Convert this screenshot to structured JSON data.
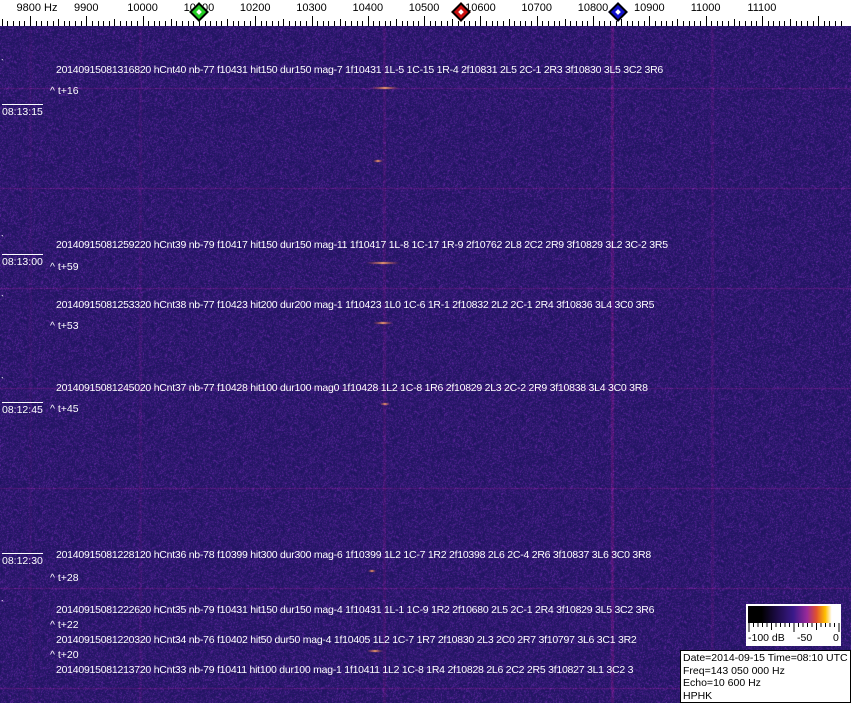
{
  "frequency_axis": {
    "labels": [
      {
        "text": "9800 Hz",
        "freq": 9800
      },
      {
        "text": "9900",
        "freq": 9900
      },
      {
        "text": "10000",
        "freq": 10000
      },
      {
        "text": "10100",
        "freq": 10100
      },
      {
        "text": "10200",
        "freq": 10200
      },
      {
        "text": "10300",
        "freq": 10300
      },
      {
        "text": "10400",
        "freq": 10400
      },
      {
        "text": "10500",
        "freq": 10500
      },
      {
        "text": "10600",
        "freq": 10600
      },
      {
        "text": "10700",
        "freq": 10700
      },
      {
        "text": "10800",
        "freq": 10800
      },
      {
        "text": "10900",
        "freq": 10900
      },
      {
        "text": "11000",
        "freq": 11000
      },
      {
        "text": "11100",
        "freq": 11100
      }
    ],
    "markers": [
      {
        "name": "green-marker",
        "freq": 10100,
        "color": "#22cc22"
      },
      {
        "name": "red-marker",
        "freq": 10565,
        "color": "#cc1111"
      },
      {
        "name": "blue-marker",
        "freq": 10845,
        "color": "#1111cc"
      }
    ]
  },
  "events": [
    {
      "text": "20140915081316820 hCnt40 nb-77 f10431 hit150 dur150 mag-7 1f10431 1L-5 1C-15 1R-4 2f10831 2L5 2C-1 2R3 3f10830 3L5 3C2 3R6",
      "tplus": "^ t+16"
    },
    {
      "text": "20140915081259220 hCnt39 nb-79 f10417 hit150 dur150 mag-11 1f10417 1L-8 1C-17 1R-9 2f10762 2L8 2C2 2R9 3f10829 3L2 3C-2 3R5",
      "tplus": "^ t+59"
    },
    {
      "text": "20140915081253320 hCnt38 nb-77 f10423 hit200 dur200 mag-1 1f10423 1L0 1C-6 1R-1 2f10832 2L2 2C-1 2R4 3f10836 3L4 3C0 3R5",
      "tplus": "^ t+53"
    },
    {
      "text": "20140915081245020 hCnt37 nb-77 f10428 hit100 dur100 mag0 1f10428 1L2 1C-8 1R6 2f10829 2L3 2C-2 2R9 3f10838 3L4 3C0 3R8",
      "tplus": "^ t+45"
    },
    {
      "text": "20140915081228120 hCnt36 nb-78 f10399 hit300 dur300 mag-6 1f10399 1L2 1C-7 1R2 2f10398 2L6 2C-4 2R6 3f10837 3L6 3C0 3R8",
      "tplus": "^ t+28"
    },
    {
      "text": "20140915081222620 hCnt35 nb-79 f10431 hit150 dur150 mag-4 1f10431 1L-1 1C-9 1R2 2f10680 2L5 2C-1 2R4 3f10829 3L5 3C2 3R6",
      "tplus": "^ t+22"
    },
    {
      "text": "20140915081220320 hCnt34 nb-76 f10402 hit50 dur50 mag-4 1f10405 1L2 1C-7 1R7 2f10830 2L3 2C0 2R7 3f10797 3L6 3C1 3R2",
      "tplus": "^ t+20"
    },
    {
      "text": "20140915081213720 hCnt33 nb-79 f10411 hit100 dur100 mag-1 1f10411 1L2 1C-8 1R4 2f10828 2L6 2C2 2R5 3f10827 3L1 3C2 3",
      "tplus": ""
    }
  ],
  "time_labels": [
    "08:13:15",
    "08:13:00",
    "08:12:45",
    "08:12:30"
  ],
  "legend": {
    "min_label": "-100 dB",
    "mid_label": "-50",
    "max_label": "0"
  },
  "info": {
    "line1": "Date=2014-09-15 Time=08:10 UTC",
    "line2": "Freq=143 050 000 Hz",
    "line3": "Echo=10 600 Hz",
    "line4": "HPHK"
  },
  "colors": {
    "background": "#2a1b72",
    "grid": "#7a3a9a"
  }
}
